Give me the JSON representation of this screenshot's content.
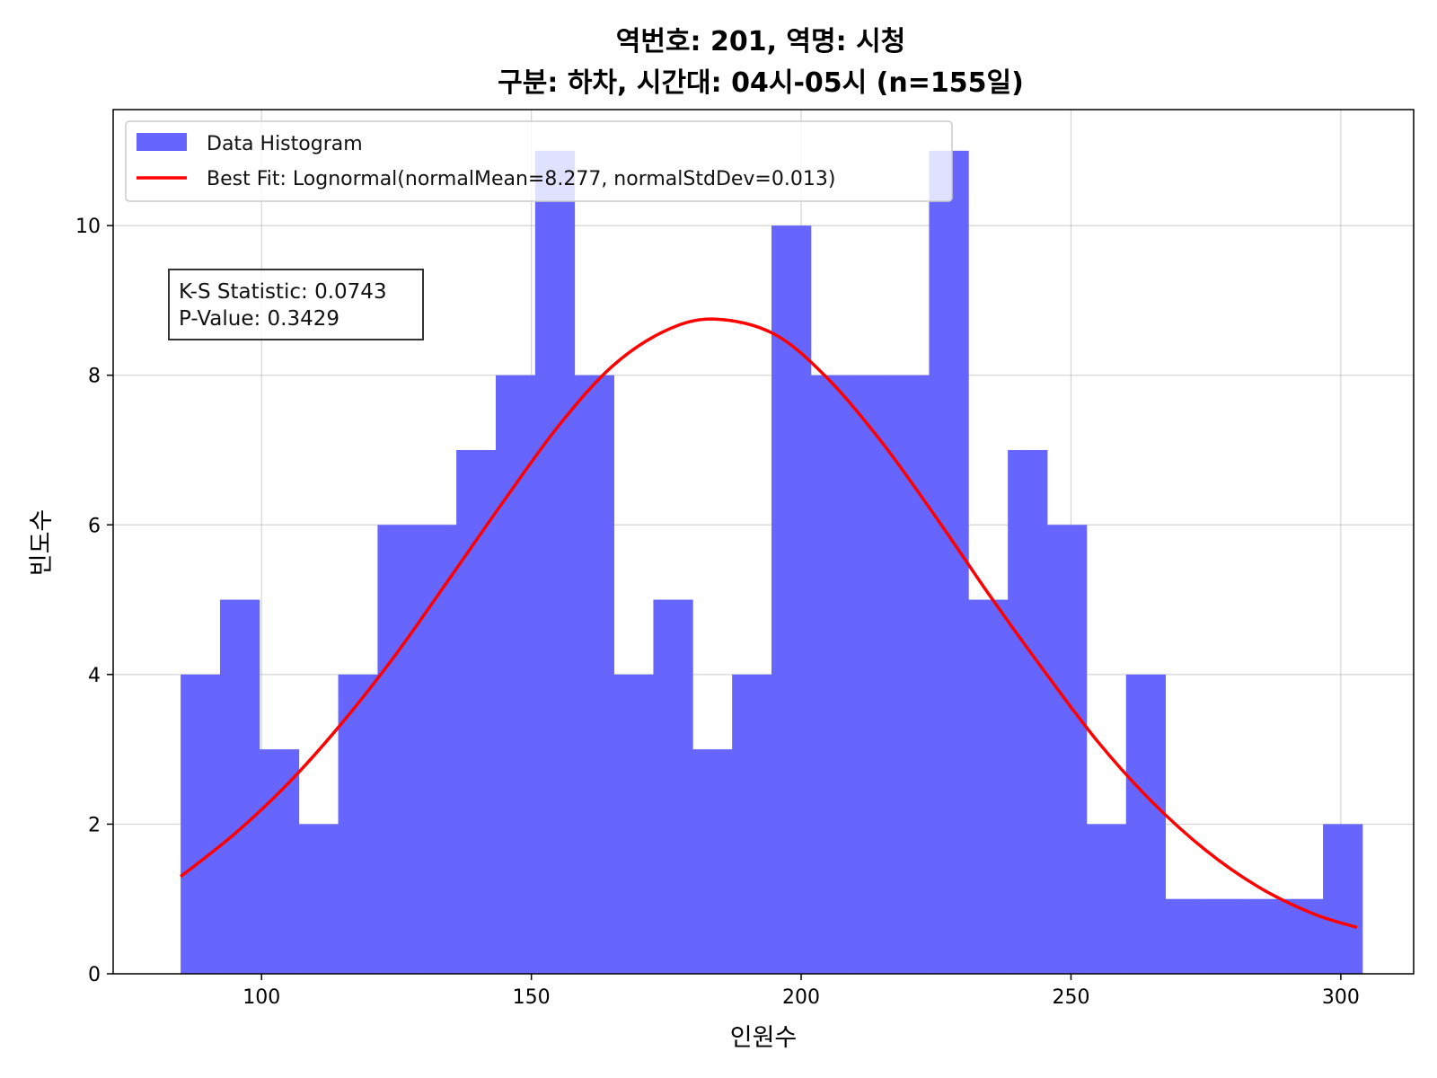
{
  "chart_data": {
    "type": "bar",
    "title_line1": "역번호: 201, 역명: 시청",
    "title_line2": "구분: 하차, 시간대: 04시-05시 (n=155일)",
    "xlabel": "인원수",
    "ylabel": "빈도수",
    "xlim": [
      72.5,
      313.5
    ],
    "ylim": [
      0,
      11.55
    ],
    "xticks": [
      100,
      150,
      200,
      250,
      300
    ],
    "yticks": [
      0,
      2,
      4,
      6,
      8,
      10
    ],
    "grid": true,
    "legend_position": "top-left",
    "histogram": {
      "name": "Data Histogram",
      "color": "#6666ff",
      "bin_start": 85,
      "bin_width": 7.3,
      "counts": [
        4,
        5,
        3,
        2,
        4,
        6,
        6,
        7,
        8,
        11,
        8,
        4,
        5,
        3,
        4,
        10,
        8,
        8,
        8,
        11,
        5,
        7,
        6,
        2,
        4,
        1,
        1,
        1,
        1,
        2
      ]
    },
    "fit": {
      "name": "Best Fit: Lognormal(normalMean=8.277, normalStdDev=0.013)",
      "color": "#ff0000",
      "x": [
        85,
        95,
        105,
        115,
        125,
        135,
        145,
        155,
        165,
        175,
        184,
        195,
        205,
        215,
        225,
        235,
        245,
        255,
        265,
        275,
        285,
        295,
        303
      ],
      "y": [
        1.3,
        1.87,
        2.55,
        3.36,
        4.28,
        5.3,
        6.33,
        7.32,
        8.12,
        8.6,
        8.75,
        8.55,
        7.95,
        7.1,
        6.1,
        5.05,
        4.05,
        3.1,
        2.3,
        1.65,
        1.15,
        0.8,
        0.62
      ]
    },
    "stats": {
      "ks_line": "K-S Statistic: 0.0743",
      "p_line": "P-Value: 0.3429"
    }
  }
}
